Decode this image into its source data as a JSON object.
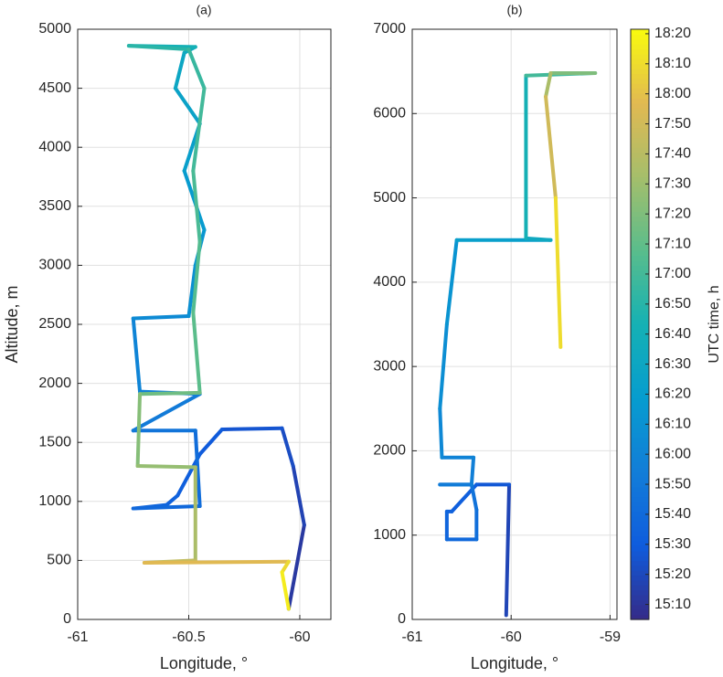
{
  "chart_data": [
    {
      "type": "line",
      "title": "(a)",
      "xlabel": "Longitude, °",
      "ylabel": "Altitude, m",
      "xlim": [
        -61,
        -59.86
      ],
      "xticks": [
        -61,
        -60.5,
        -60
      ],
      "ylim": [
        0,
        5000
      ],
      "yticks": [
        0,
        500,
        1000,
        1500,
        2000,
        2500,
        3000,
        3500,
        4000,
        4500,
        5000
      ],
      "grid": true,
      "series": [
        {
          "x": [
            -60.05,
            -59.98,
            -60.03,
            -60.08,
            -60.35,
            -60.45,
            -60.55,
            -60.6,
            -60.75,
            -60.45,
            -60.47,
            -60.75,
            -60.45,
            -60.72,
            -60.75,
            -60.5,
            -60.47,
            -60.43,
            -60.52,
            -60.45,
            -60.56,
            -60.52,
            -60.47,
            -60.77,
            -60.5,
            -60.43,
            -60.48,
            -60.45,
            -60.48,
            -60.45,
            -60.72,
            -60.73,
            -60.47,
            -60.47,
            -60.7,
            -60.05,
            -60.08,
            -60.05
          ],
          "y": [
            90,
            800,
            1300,
            1620,
            1610,
            1400,
            1050,
            970,
            940,
            960,
            1600,
            1600,
            1910,
            1930,
            2550,
            2570,
            3000,
            3300,
            3800,
            4200,
            4500,
            4800,
            4850,
            4860,
            4830,
            4500,
            3800,
            3200,
            2600,
            1920,
            1910,
            1300,
            1290,
            500,
            480,
            490,
            400,
            90
          ],
          "t": [
            910,
            915,
            920,
            924,
            928,
            930,
            933,
            935,
            937,
            940,
            945,
            950,
            955,
            958,
            962,
            967,
            972,
            976,
            980,
            984,
            988,
            992,
            995,
            1008,
            1014,
            1018,
            1021,
            1024,
            1027,
            1030,
            1040,
            1045,
            1050,
            1060,
            1068,
            1085,
            1092,
            1100
          ]
        }
      ]
    },
    {
      "type": "line",
      "title": "(b)",
      "xlabel": "Longitude, °",
      "xlim": [
        -61,
        -58.93
      ],
      "xticks": [
        -61,
        -60,
        -59
      ],
      "ylim": [
        0,
        7000
      ],
      "yticks": [
        0,
        1000,
        2000,
        3000,
        4000,
        5000,
        6000,
        7000
      ],
      "grid": true,
      "series": [
        {
          "x": [
            -60.05,
            -60.02,
            -60.35,
            -60.6,
            -60.65,
            -60.65,
            -60.35,
            -60.35,
            -60.4,
            -60.72,
            -60.4,
            -60.38,
            -60.7,
            -60.72,
            -60.65,
            -60.55,
            -59.6,
            -59.85,
            -59.85,
            -59.15,
            -59.6,
            -59.65,
            -59.55,
            -59.5
          ],
          "y": [
            50,
            1600,
            1600,
            1280,
            1280,
            950,
            950,
            1300,
            1600,
            1600,
            1600,
            1920,
            1920,
            2500,
            3500,
            4500,
            4500,
            4520,
            6450,
            6480,
            6480,
            6200,
            5000,
            3230
          ],
          "t": [
            912,
            925,
            930,
            933,
            935,
            937,
            942,
            945,
            948,
            952,
            955,
            957,
            960,
            965,
            970,
            975,
            990,
            995,
            1010,
            1030,
            1050,
            1060,
            1080,
            1100
          ]
        }
      ],
      "color_axis": {
        "label": "UTC time, h",
        "colormap": "parula",
        "clim": [
          905,
          1101.5
        ],
        "ticks": [
          {
            "value": 910,
            "label": "15:10"
          },
          {
            "value": 920,
            "label": "15:20"
          },
          {
            "value": 930,
            "label": "15:30"
          },
          {
            "value": 940,
            "label": "15:40"
          },
          {
            "value": 950,
            "label": "15:50"
          },
          {
            "value": 960,
            "label": "16:00"
          },
          {
            "value": 970,
            "label": "16:10"
          },
          {
            "value": 980,
            "label": "16:20"
          },
          {
            "value": 990,
            "label": "16:30"
          },
          {
            "value": 1000,
            "label": "16:40"
          },
          {
            "value": 1010,
            "label": "16:50"
          },
          {
            "value": 1020,
            "label": "17:00"
          },
          {
            "value": 1030,
            "label": "17:10"
          },
          {
            "value": 1040,
            "label": "17:20"
          },
          {
            "value": 1050,
            "label": "17:30"
          },
          {
            "value": 1060,
            "label": "17:40"
          },
          {
            "value": 1070,
            "label": "17:50"
          },
          {
            "value": 1080,
            "label": "18:00"
          },
          {
            "value": 1090,
            "label": "18:10"
          },
          {
            "value": 1100,
            "label": "18:20"
          }
        ]
      }
    }
  ]
}
